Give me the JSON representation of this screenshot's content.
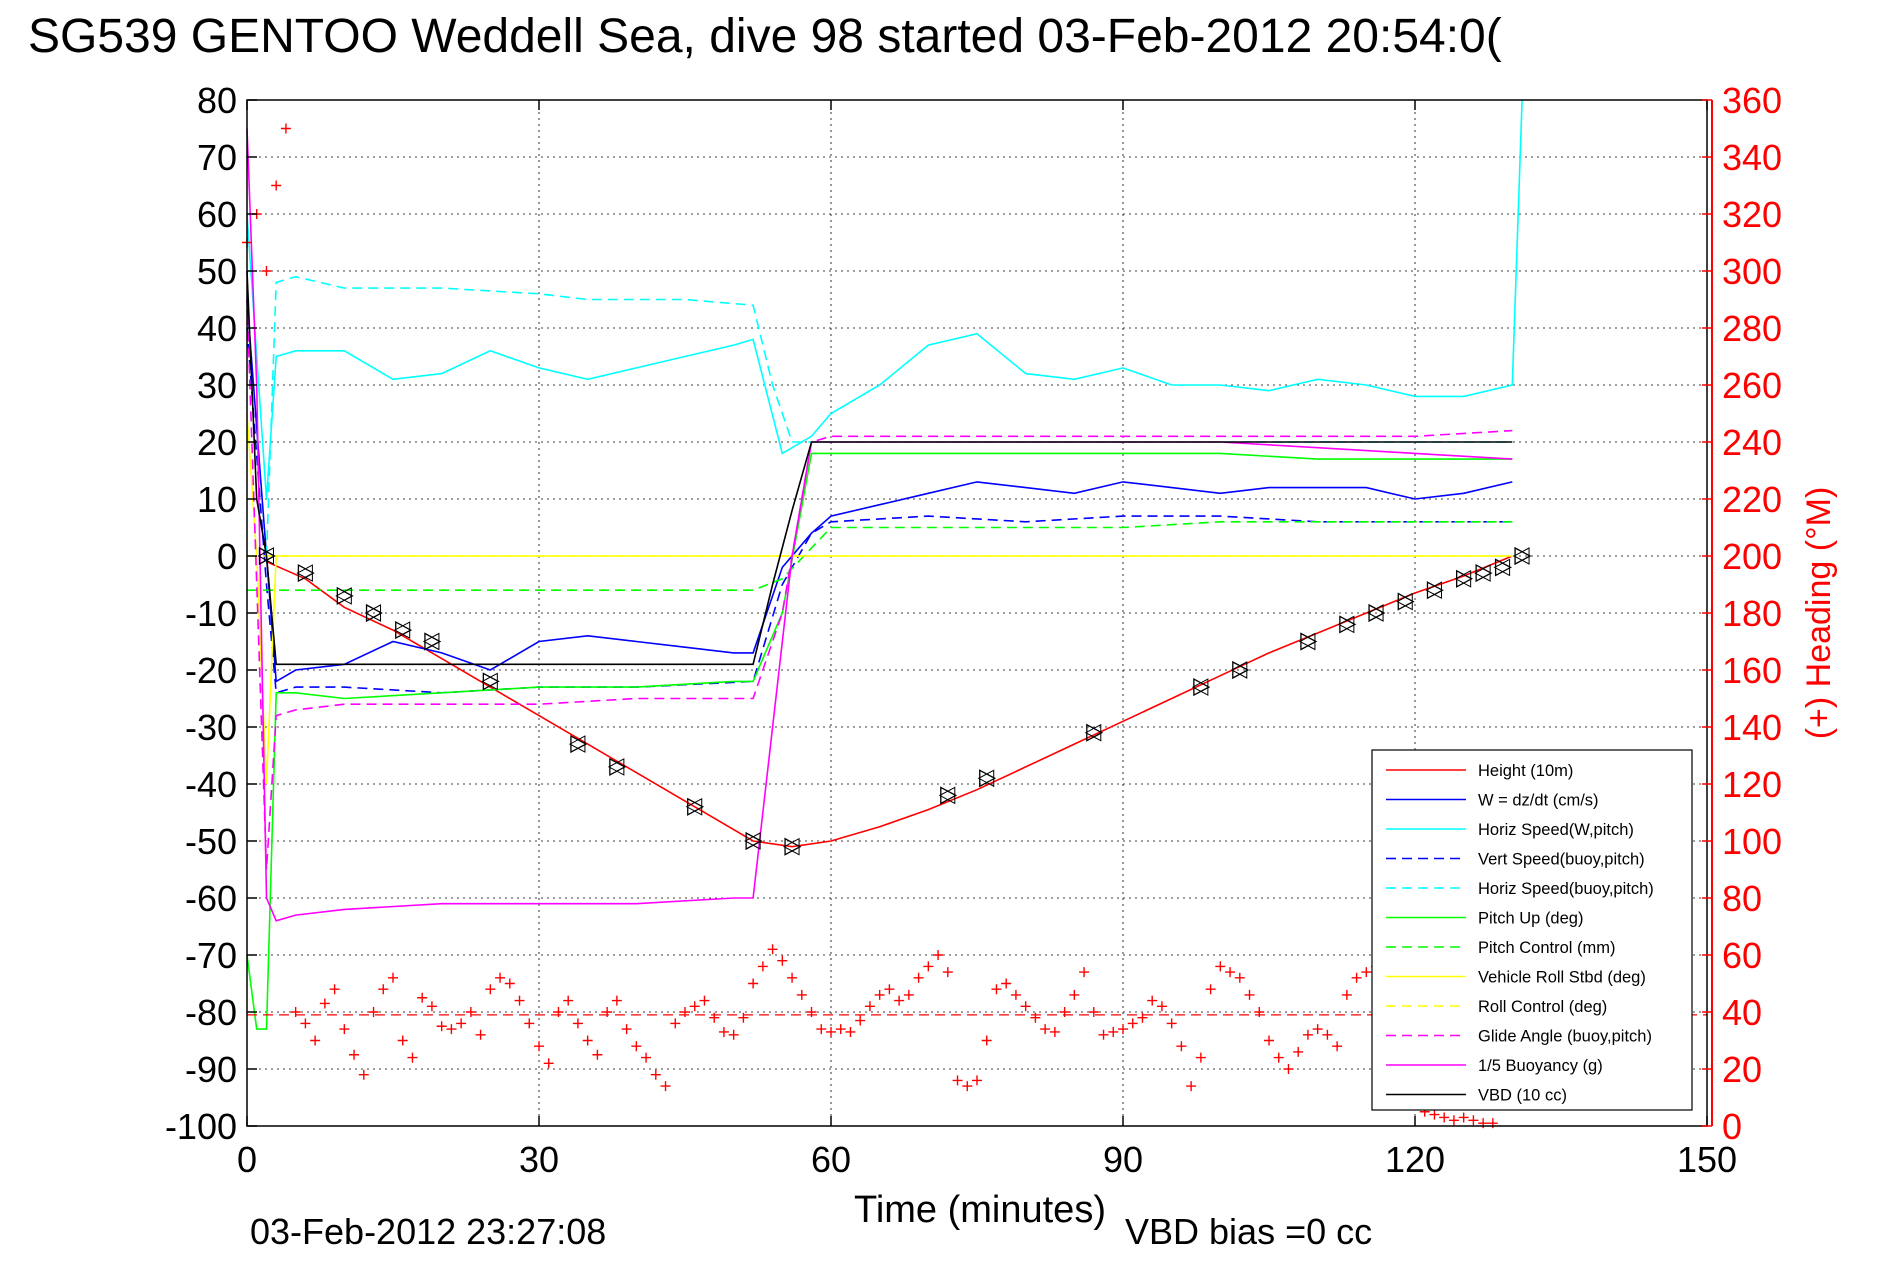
{
  "chart_data": {
    "type": "line",
    "title": "SG539 GENTOO Weddell Sea, dive 98 started 03-Feb-2012 20:54:0(",
    "xlabel": "Time (minutes)",
    "ylabel_right": "(+) Heading (°M)",
    "footer_date": "03-Feb-2012 23:27:08",
    "footer_note": "VBD bias =0 cc",
    "xlim": [
      0,
      150
    ],
    "ylim_left": [
      -100,
      80
    ],
    "ylim_right": [
      0,
      360
    ],
    "grid": true,
    "legend_position": "bottom-right",
    "x_ticks": [
      "0",
      "30",
      "60",
      "90",
      "120",
      "150"
    ],
    "y_ticks_left": [
      "80",
      "70",
      "60",
      "50",
      "40",
      "30",
      "20",
      "10",
      "0",
      "-10",
      "-20",
      "-30",
      "-40",
      "-50",
      "-60",
      "-70",
      "-80",
      "-90",
      "-100"
    ],
    "y_ticks_right": [
      "360",
      "340",
      "320",
      "300",
      "280",
      "260",
      "240",
      "220",
      "200",
      "180",
      "160",
      "140",
      "120",
      "100",
      "80",
      "60",
      "40",
      "20",
      "0"
    ],
    "colors": {
      "height": "#ff0000",
      "w": "#0000ff",
      "horiz_speed": "#00ffff",
      "vert_speed_buoy": "#0000ff",
      "horiz_speed_buoy": "#00ffff",
      "pitch_up": "#00ff00",
      "pitch_control": "#00ff00",
      "roll": "#ffff00",
      "roll_control": "#ffff00",
      "glide_angle": "#ff00ff",
      "buoyancy": "#ff00ff",
      "vbd": "#000000",
      "heading": "#ff0000",
      "right_axis": "#ff0000"
    },
    "series": [
      {
        "name": "Height (10m)",
        "style": "solid",
        "color": "#ff0000",
        "x": [
          2,
          6,
          10,
          15,
          20,
          25,
          30,
          35,
          40,
          45,
          52,
          56,
          60,
          65,
          70,
          75,
          80,
          85,
          90,
          95,
          100,
          105,
          110,
          115,
          120,
          125,
          130
        ],
        "y": [
          -1,
          -4,
          -9,
          -13,
          -18,
          -23,
          -28,
          -33,
          -38,
          -43,
          -50,
          -51,
          -50,
          -47.5,
          -44.5,
          -41,
          -37,
          -33,
          -29,
          -25,
          -21,
          -17,
          -13.5,
          -10,
          -6.5,
          -3.5,
          0
        ]
      },
      {
        "name": "W = dz/dt (cm/s)",
        "style": "solid",
        "color": "#0000ff",
        "x": [
          0,
          2,
          3,
          5,
          10,
          15,
          20,
          25,
          30,
          35,
          40,
          45,
          50,
          52,
          55,
          58,
          60,
          65,
          70,
          75,
          80,
          85,
          90,
          95,
          100,
          105,
          110,
          115,
          120,
          125,
          130
        ],
        "y": [
          45,
          0,
          -22,
          -20,
          -19,
          -15,
          -17,
          -20,
          -15,
          -14,
          -15,
          -16,
          -17,
          -17,
          -2,
          4,
          7,
          9,
          11,
          13,
          12,
          11,
          13,
          12,
          11,
          12,
          12,
          12,
          10,
          11,
          13
        ]
      },
      {
        "name": "Horiz Speed(W,pitch)",
        "style": "solid",
        "color": "#00ffff",
        "x": [
          0,
          2,
          3,
          5,
          10,
          15,
          20,
          25,
          30,
          35,
          40,
          45,
          50,
          52,
          55,
          58,
          60,
          65,
          70,
          75,
          80,
          85,
          90,
          95,
          100,
          105,
          110,
          115,
          120,
          125,
          130,
          131
        ],
        "y": [
          60,
          10,
          35,
          36,
          36,
          31,
          32,
          36,
          33,
          31,
          33,
          35,
          37,
          38,
          18,
          21,
          25,
          30,
          37,
          39,
          32,
          31,
          33,
          30,
          30,
          29,
          31,
          30,
          28,
          28,
          30,
          80
        ]
      },
      {
        "name": "Vert Speed(buoy,pitch)",
        "style": "dashed",
        "color": "#0000ff",
        "x": [
          0,
          2,
          3,
          5,
          10,
          20,
          30,
          40,
          52,
          55,
          58,
          60,
          70,
          80,
          90,
          100,
          110,
          120,
          130
        ],
        "y": [
          40,
          -5,
          -24,
          -23,
          -23,
          -24,
          -23,
          -23,
          -22,
          -5,
          4,
          6,
          7,
          6,
          7,
          7,
          6,
          6,
          6
        ]
      },
      {
        "name": "Horiz Speed(buoy,pitch)",
        "style": "dashed",
        "color": "#00ffff",
        "x": [
          2,
          3,
          5,
          10,
          20,
          30,
          35,
          40,
          45,
          52,
          54,
          56,
          58,
          60,
          70,
          80,
          90,
          100,
          110,
          120,
          130
        ],
        "y": [
          0,
          48,
          49,
          47,
          47,
          46,
          45,
          45,
          45,
          44,
          30,
          20,
          20,
          20,
          20,
          20,
          20,
          20,
          20,
          20,
          20
        ]
      },
      {
        "name": "Pitch Up (deg)",
        "style": "solid",
        "color": "#00ff00",
        "x": [
          0,
          1,
          2,
          3,
          5,
          10,
          20,
          30,
          40,
          50,
          52,
          55,
          58,
          60,
          70,
          80,
          90,
          100,
          110,
          120,
          130
        ],
        "y": [
          -70,
          -83,
          -83,
          -24,
          -24,
          -25,
          -24,
          -23,
          -23,
          -22,
          -22,
          -10,
          18,
          18,
          18,
          18,
          18,
          18,
          17,
          17,
          17
        ]
      },
      {
        "name": "Pitch Control (mm)",
        "style": "dashed",
        "color": "#00ff00",
        "x": [
          0,
          3,
          10,
          20,
          30,
          40,
          52,
          55,
          60,
          70,
          80,
          90,
          100,
          110,
          120,
          130
        ],
        "y": [
          -6,
          -6,
          -6,
          -6,
          -6,
          -6,
          -6,
          -4,
          5,
          5,
          5,
          5,
          6,
          6,
          6,
          6
        ]
      },
      {
        "name": "Vehicle Roll Stbd (deg)",
        "style": "solid",
        "color": "#ffff00",
        "x": [
          0,
          1,
          2,
          3,
          5,
          10,
          20,
          30,
          40,
          50,
          52,
          56,
          60,
          70,
          80,
          90,
          100,
          110,
          120,
          130
        ],
        "y": [
          25,
          0,
          -40,
          0,
          0,
          0,
          0,
          0,
          0,
          0,
          0,
          0,
          0,
          0,
          0,
          0,
          0,
          0,
          0,
          0
        ]
      },
      {
        "name": "Roll Control (deg)",
        "style": "dashed",
        "color": "#ffff00",
        "x": [
          0,
          3,
          10,
          20,
          30,
          40,
          52,
          60,
          70,
          80,
          90,
          100,
          110,
          120,
          130
        ],
        "y": [
          0,
          0,
          0,
          0,
          0,
          0,
          0,
          0,
          0,
          0,
          0,
          0,
          0,
          0,
          0
        ]
      },
      {
        "name": "Glide Angle (buoy,pitch)",
        "style": "dashed",
        "color": "#ff00ff",
        "x": [
          0,
          2,
          3,
          5,
          10,
          20,
          30,
          40,
          52,
          55,
          58,
          60,
          70,
          80,
          90,
          100,
          110,
          120,
          130
        ],
        "y": [
          45,
          -55,
          -28,
          -27,
          -26,
          -26,
          -26,
          -25,
          -25,
          -10,
          20,
          21,
          21,
          21,
          21,
          21,
          21,
          21,
          22
        ]
      },
      {
        "name": "1/5 Buoyancy (g)",
        "style": "solid",
        "color": "#ff00ff",
        "x": [
          0,
          1,
          2,
          3,
          5,
          10,
          20,
          30,
          40,
          50,
          52,
          56,
          58,
          60,
          70,
          80,
          90,
          100,
          110,
          120,
          130
        ],
        "y": [
          75,
          30,
          -60,
          -64,
          -63,
          -62,
          -61,
          -61,
          -61,
          -60,
          -60,
          0,
          20,
          20,
          20,
          20,
          20,
          20,
          19,
          18,
          17
        ]
      },
      {
        "name": "VBD (10 cc)",
        "style": "solid",
        "color": "#000000",
        "x": [
          0,
          1,
          2,
          3,
          5,
          10,
          20,
          30,
          40,
          52,
          54,
          56,
          58,
          60,
          70,
          80,
          90,
          100,
          110,
          120,
          130
        ],
        "y": [
          50,
          10,
          0,
          -19,
          -19,
          -19,
          -19,
          -19,
          -19,
          -19,
          -5,
          8,
          20,
          20,
          20,
          20,
          20,
          20,
          20,
          20,
          20
        ]
      }
    ],
    "heading_series": {
      "marker": "+",
      "color": "#ff0000",
      "axis": "right",
      "x": [
        0,
        1,
        2,
        3,
        4,
        5,
        6,
        7,
        8,
        9,
        10,
        11,
        12,
        13,
        14,
        15,
        16,
        17,
        18,
        19,
        20,
        21,
        22,
        23,
        24,
        25,
        26,
        27,
        28,
        29,
        30,
        31,
        32,
        33,
        34,
        35,
        36,
        37,
        38,
        39,
        40,
        41,
        42,
        43,
        44,
        45,
        46,
        47,
        48,
        49,
        50,
        51,
        52,
        53,
        54,
        55,
        56,
        57,
        58,
        59,
        60,
        61,
        62,
        63,
        64,
        65,
        66,
        67,
        68,
        69,
        70,
        71,
        72,
        73,
        74,
        75,
        76,
        77,
        78,
        79,
        80,
        81,
        82,
        83,
        84,
        85,
        86,
        87,
        88,
        89,
        90,
        91,
        92,
        93,
        94,
        95,
        96,
        97,
        98,
        99,
        100,
        101,
        102,
        103,
        104,
        105,
        106,
        107,
        108,
        109,
        110,
        111,
        112,
        113,
        114,
        115,
        116,
        117,
        118,
        119,
        120,
        121,
        122,
        123,
        124,
        125,
        126,
        127,
        128
      ],
      "y": [
        310,
        320,
        300,
        330,
        350,
        40,
        36,
        30,
        43,
        48,
        34,
        25,
        18,
        40,
        48,
        52,
        30,
        24,
        45,
        42,
        35,
        34,
        36,
        40,
        32,
        48,
        52,
        50,
        44,
        36,
        28,
        22,
        40,
        44,
        36,
        30,
        25,
        40,
        44,
        34,
        28,
        24,
        18,
        14,
        36,
        40,
        42,
        44,
        38,
        33,
        32,
        38,
        50,
        56,
        62,
        58,
        52,
        46,
        40,
        34,
        33,
        34,
        33,
        37,
        42,
        46,
        48,
        44,
        46,
        52,
        56,
        60,
        54,
        16,
        14,
        16,
        30,
        48,
        50,
        46,
        42,
        38,
        34,
        33,
        40,
        46,
        54,
        40,
        32,
        33,
        34,
        36,
        38,
        44,
        42,
        36,
        28,
        14,
        24,
        48,
        56,
        54,
        52,
        46,
        40,
        30,
        24,
        20,
        26,
        32,
        34,
        32,
        28,
        46,
        52,
        54,
        56,
        40,
        24,
        14,
        8,
        5,
        4,
        3,
        2,
        3,
        2,
        1,
        1
      ]
    },
    "reference_line": {
      "y_right": 39,
      "style": "dashed",
      "color": "#ff0000"
    },
    "triangle_markers": {
      "x": [
        2,
        6,
        10,
        13,
        16,
        19,
        25,
        34,
        38,
        46,
        52,
        56,
        72,
        76,
        87,
        98,
        102,
        109,
        113,
        116,
        119,
        122,
        125,
        127,
        129,
        131
      ],
      "y": [
        0,
        -3,
        -7,
        -10,
        -13,
        -15,
        -22,
        -33,
        -37,
        -44,
        -50,
        -51,
        -42,
        -39,
        -31,
        -23,
        -20,
        -15,
        -12,
        -10,
        -8,
        -6,
        -4,
        -3,
        -2,
        0
      ]
    },
    "legend": [
      {
        "label": "Height (10m)",
        "color": "#ff0000",
        "style": "solid"
      },
      {
        "label": "W = dz/dt (cm/s)",
        "color": "#0000ff",
        "style": "solid"
      },
      {
        "label": "Horiz Speed(W,pitch)",
        "color": "#00ffff",
        "style": "solid"
      },
      {
        "label": "Vert Speed(buoy,pitch)",
        "color": "#0000ff",
        "style": "dashed"
      },
      {
        "label": "Horiz Speed(buoy,pitch)",
        "color": "#00ffff",
        "style": "dashed"
      },
      {
        "label": "Pitch Up (deg)",
        "color": "#00ff00",
        "style": "solid"
      },
      {
        "label": "Pitch Control (mm)",
        "color": "#00ff00",
        "style": "dashed"
      },
      {
        "label": "Vehicle Roll Stbd (deg)",
        "color": "#ffff00",
        "style": "solid"
      },
      {
        "label": "Roll Control (deg)",
        "color": "#ffff00",
        "style": "dashed"
      },
      {
        "label": "Glide Angle (buoy,pitch)",
        "color": "#ff00ff",
        "style": "dashed"
      },
      {
        "label": "1/5 Buoyancy (g)",
        "color": "#ff00ff",
        "style": "solid"
      },
      {
        "label": "VBD (10 cc)",
        "color": "#000000",
        "style": "solid"
      }
    ]
  }
}
